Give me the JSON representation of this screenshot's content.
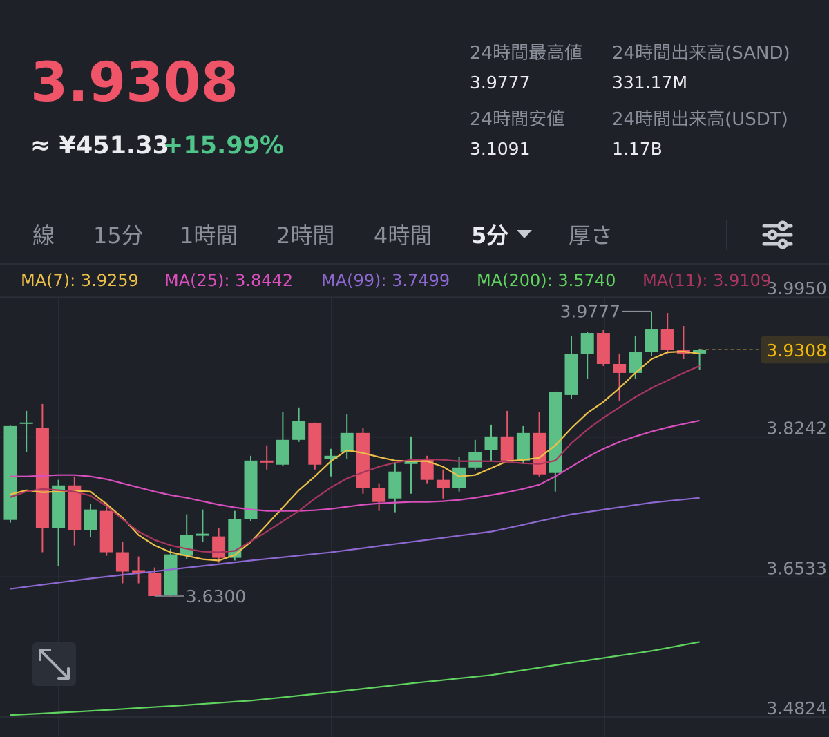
{
  "header": {
    "price": "3.9308",
    "fiat": "≈ ¥451.33",
    "change": "+15.99%",
    "stats": [
      {
        "label": "24時間最高値",
        "value": "3.9777"
      },
      {
        "label": "24時間出来高(SAND)",
        "value": "331.17M"
      },
      {
        "label": "24時間安値",
        "value": "3.1091"
      },
      {
        "label": "24時間出来高(USDT)",
        "value": "1.17B"
      }
    ]
  },
  "tabs": [
    "線",
    "15分",
    "1時間",
    "2時間",
    "4時間",
    "5分",
    "厚さ"
  ],
  "active_tab": 5,
  "chart_data": {
    "type": "candlestick",
    "open": [
      3.723,
      3.8401,
      3.835,
      3.7129,
      3.7651,
      3.7104,
      3.734,
      3.6835,
      3.6616,
      3.6582,
      3.631,
      3.6792,
      3.7037,
      3.7028,
      3.6767,
      3.7239,
      3.7954,
      3.7904,
      3.8207,
      3.8409,
      3.7971,
      3.8055,
      3.8291,
      3.7618,
      3.7491,
      3.7912,
      3.7971,
      3.7719,
      3.7618,
      3.787,
      3.8081,
      3.8249,
      3.7954,
      3.8291,
      3.7803,
      3.8754,
      3.9251,
      3.9512,
      3.9133,
      3.9024,
      3.9276,
      3.9554,
      3.9302,
      3.926
    ],
    "high": [
      3.838,
      3.8561,
      3.8645,
      3.7719,
      3.7761,
      3.7424,
      3.7441,
      3.6961,
      3.6784,
      3.6649,
      3.6877,
      3.7298,
      3.7357,
      3.7129,
      3.734,
      3.8013,
      3.814,
      3.8544,
      3.8603,
      3.8418,
      3.8098,
      3.8519,
      3.835,
      3.7677,
      3.7929,
      3.8249,
      3.8013,
      3.7845,
      3.7997,
      3.8207,
      3.8392,
      3.8561,
      3.8375,
      3.8544,
      3.8797,
      3.947,
      3.9529,
      3.9546,
      3.926,
      3.947,
      3.9777,
      3.9756,
      3.9596,
      3.9319
    ],
    "low": [
      3.7197,
      3.8055,
      3.6835,
      3.6666,
      3.6919,
      3.702,
      3.6792,
      3.6456,
      3.6456,
      3.63,
      3.6305,
      3.675,
      3.6961,
      3.6708,
      3.6734,
      3.7213,
      3.7845,
      3.7887,
      3.8182,
      3.7845,
      3.7761,
      3.7971,
      3.755,
      3.734,
      3.7323,
      3.755,
      3.7677,
      3.7491,
      3.7576,
      3.7845,
      3.7946,
      3.7929,
      3.7912,
      3.7761,
      3.7576,
      3.8704,
      3.8956,
      3.9108,
      3.8687,
      3.8956,
      3.9234,
      3.926,
      3.9192,
      3.9066
    ],
    "close": [
      3.8375,
      3.8418,
      3.7129,
      3.7651,
      3.7104,
      3.7357,
      3.6835,
      3.6599,
      3.6582,
      3.63,
      3.6809,
      3.7045,
      3.7062,
      3.6767,
      3.7239,
      3.7954,
      3.7929,
      3.8207,
      3.8434,
      3.7904,
      3.8013,
      3.8291,
      3.7618,
      3.7449,
      3.782,
      3.7946,
      3.7719,
      3.7618,
      3.787,
      3.8055,
      3.8249,
      3.7954,
      3.8291,
      3.7786,
      3.8788,
      3.9251,
      3.9512,
      3.9133,
      3.9024,
      3.9276,
      3.9554,
      3.9302,
      3.926,
      3.9308
    ],
    "up_color": "#5cbf86",
    "down_color": "#e8566a",
    "series": [
      {
        "name": "MA(7): 3.9259",
        "color": "#ecc048",
        "values": [
          3.7542,
          3.7592,
          3.7567,
          3.7576,
          3.7584,
          3.7576,
          3.7424,
          3.7256,
          3.7045,
          3.6919,
          3.6835,
          3.6792,
          3.675,
          3.6734,
          3.6801,
          3.6961,
          3.7171,
          3.7382,
          3.7592,
          3.7761,
          3.7946,
          3.8081,
          3.8047,
          3.7997,
          3.7954,
          3.7946,
          3.7946,
          3.7879,
          3.7761,
          3.7778,
          3.7862,
          3.7946,
          3.7963,
          3.7988,
          3.814,
          3.835,
          3.8535,
          3.867,
          3.8839,
          3.9024,
          3.9192,
          3.9276,
          3.9285,
          3.9259
        ]
      },
      {
        "name": "MA(25): 3.8442",
        "color": "#d94fbd",
        "values": [
          3.7761,
          3.7761,
          3.7769,
          3.7778,
          3.7778,
          3.7761,
          3.7727,
          3.7677,
          3.7626,
          3.7576,
          3.7533,
          3.75,
          3.7458,
          3.7416,
          3.7382,
          3.7357,
          3.734,
          3.734,
          3.734,
          3.7348,
          3.7365,
          3.739,
          3.7416,
          3.7432,
          3.7441,
          3.7449,
          3.7449,
          3.7458,
          3.7474,
          3.75,
          3.7533,
          3.7567,
          3.7609,
          3.766,
          3.7761,
          3.7879,
          3.7997,
          3.8098,
          3.8182,
          3.8249,
          3.8308,
          3.8359,
          3.8401,
          3.8442
        ]
      },
      {
        "name": "MA(99): 3.7499",
        "color": "#8d68d1",
        "values": [
          3.6388,
          3.6413,
          3.6439,
          3.6464,
          3.649,
          3.6515,
          3.6537,
          3.6559,
          3.658,
          3.6602,
          3.6624,
          3.6646,
          3.6668,
          3.669,
          3.6712,
          3.6734,
          3.6754,
          3.6774,
          3.6795,
          3.6815,
          3.6835,
          3.686,
          3.6885,
          3.6911,
          3.6936,
          3.6961,
          3.6986,
          3.7011,
          3.7037,
          3.7062,
          3.7087,
          3.7129,
          3.7171,
          3.7214,
          3.7256,
          3.7298,
          3.7327,
          3.7355,
          3.7384,
          3.7412,
          3.7441,
          3.746,
          3.748,
          3.7499
        ]
      },
      {
        "name": "MA(200): 3.5740",
        "color": "#5fd35e",
        "values": [
          3.4848,
          3.4858,
          3.4868,
          3.4878,
          3.4888,
          3.4898,
          3.491,
          3.4922,
          3.4934,
          3.4946,
          3.4957,
          3.497,
          3.4984,
          3.4997,
          3.5011,
          3.5024,
          3.5044,
          3.5064,
          3.5085,
          3.5105,
          3.5125,
          3.5147,
          3.5169,
          3.5191,
          3.5213,
          3.5235,
          3.5255,
          3.5275,
          3.5296,
          3.5316,
          3.5336,
          3.5366,
          3.5396,
          3.5427,
          3.5457,
          3.5487,
          3.5516,
          3.5545,
          3.5573,
          3.5602,
          3.5631,
          3.5667,
          3.5704,
          3.574
        ]
      },
      {
        "name": "MA(11): 3.9109",
        "color": "#a9365f",
        "values": [
          3.7508,
          3.7576,
          3.7609,
          3.7593,
          3.7576,
          3.7525,
          3.7399,
          3.7239,
          3.7087,
          3.6986,
          3.6919,
          3.6877,
          3.6843,
          3.6835,
          3.6852,
          3.6969,
          3.7087,
          3.7213,
          3.734,
          3.7491,
          3.7626,
          3.7736,
          3.7811,
          3.7879,
          3.7929,
          3.7963,
          3.7971,
          3.7963,
          3.7946,
          3.7946,
          3.7946,
          3.7938,
          3.7921,
          3.7912,
          3.7954,
          3.8165,
          3.8333,
          3.8477,
          3.8603,
          3.8729,
          3.8839,
          3.8931,
          3.9024,
          3.9109
        ]
      }
    ],
    "ylim": [
      3.458,
      4.033
    ],
    "yticks": [
      {
        "value": 3.995,
        "label": "3.9950"
      },
      3.8242,
      3.6533,
      3.4824
    ],
    "grid": true,
    "last_price": 3.9308,
    "annotations": [
      {
        "value": 3.9777,
        "label": "3.9777"
      },
      {
        "value": 3.63,
        "label": "3.6300"
      }
    ]
  }
}
